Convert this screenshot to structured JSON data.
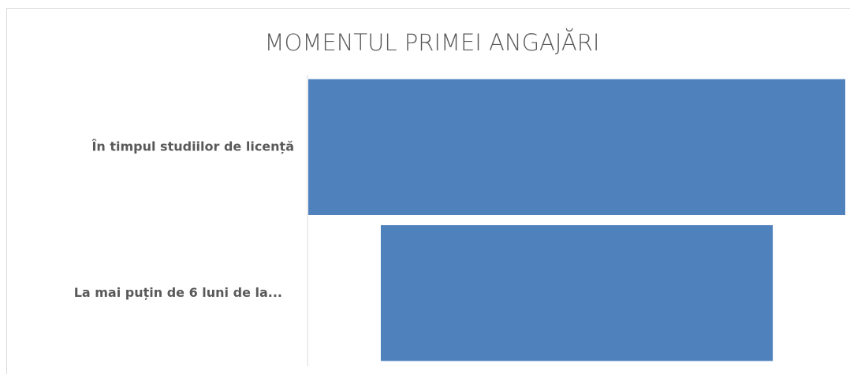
{
  "chart_data": {
    "type": "funnel",
    "title": "MOMENTUL PRIMEI ANGAJĂRI",
    "categories": [
      "În timpul studiilor de licență",
      "La mai puțin de 6 luni de la..."
    ],
    "values": [
      100,
      73
    ],
    "color": "#4f81bd"
  }
}
